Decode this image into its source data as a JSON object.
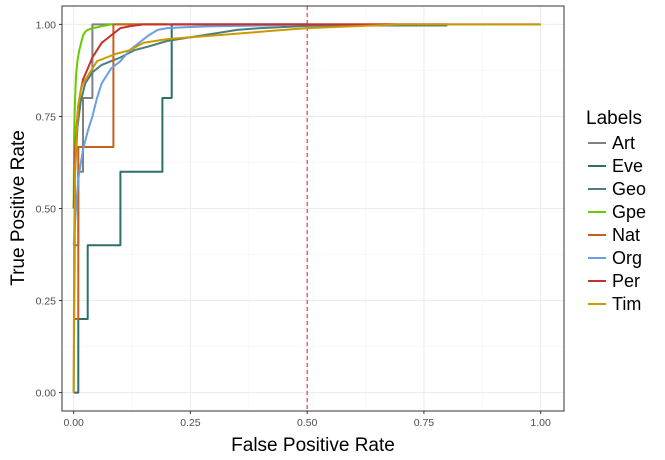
{
  "chart_data": {
    "type": "line",
    "title": "",
    "xlabel": "False Positive Rate",
    "ylabel": "True Positive Rate",
    "xlim": [
      -0.025,
      1.05
    ],
    "ylim": [
      -0.05,
      1.05
    ],
    "x_ticks": [
      0.0,
      0.25,
      0.5,
      0.75,
      1.0
    ],
    "x_tick_labels": [
      "0.00",
      "0.25",
      "0.50",
      "0.75",
      "1.00"
    ],
    "y_ticks": [
      0.0,
      0.25,
      0.5,
      0.75,
      1.0
    ],
    "y_tick_labels": [
      "0.00",
      "0.25",
      "0.50",
      "0.75",
      "1.00"
    ],
    "grid": true,
    "legend_title": "Labels",
    "legend_position": "right",
    "reference_line": {
      "x": 0.5,
      "color": "#e41a1c",
      "style": "dashed"
    },
    "series": [
      {
        "name": "Art",
        "color": "#808080",
        "x": [
          0,
          0.01,
          0.01,
          0.02,
          0.02,
          0.04,
          0.04,
          1.0
        ],
        "y": [
          0.4,
          0.4,
          0.6,
          0.6,
          0.8,
          0.8,
          1.0,
          1.0
        ]
      },
      {
        "name": "Eve",
        "color": "#2f6f6a",
        "x": [
          0,
          0.01,
          0.01,
          0.03,
          0.03,
          0.1,
          0.1,
          0.19,
          0.19,
          0.21,
          0.21,
          0.5
        ],
        "y": [
          0,
          0,
          0.2,
          0.2,
          0.4,
          0.4,
          0.6,
          0.6,
          0.8,
          0.8,
          1.0,
          1.0
        ]
      },
      {
        "name": "Geo",
        "color": "#4a7f7d",
        "x": [
          0,
          0.003,
          0.008,
          0.015,
          0.025,
          0.04,
          0.06,
          0.08,
          0.1,
          0.13,
          0.16,
          0.2,
          0.25,
          0.3,
          0.35,
          0.4,
          0.45,
          0.5,
          0.55,
          0.6,
          0.8
        ],
        "y": [
          0,
          0.6,
          0.72,
          0.79,
          0.84,
          0.87,
          0.89,
          0.9,
          0.91,
          0.93,
          0.94,
          0.955,
          0.965,
          0.975,
          0.985,
          0.99,
          0.993,
          0.996,
          0.997,
          0.997,
          0.997
        ]
      },
      {
        "name": "Gpe",
        "color": "#66cc00",
        "x": [
          0,
          0.001,
          0.003,
          0.005,
          0.008,
          0.012,
          0.016,
          0.02,
          0.025,
          0.03,
          0.04,
          0.05,
          0.06,
          0.08,
          0.1,
          0.15,
          0.2
        ],
        "y": [
          0.5,
          0.7,
          0.8,
          0.86,
          0.9,
          0.93,
          0.95,
          0.97,
          0.98,
          0.985,
          0.99,
          0.992,
          0.995,
          1.0,
          1.0,
          1.0,
          1.0
        ]
      },
      {
        "name": "Nat",
        "color": "#c65f1f",
        "x": [
          0,
          0.01,
          0.01,
          0.085,
          0.085,
          0.2
        ],
        "y": [
          0.2,
          0.2,
          0.667,
          0.667,
          1.0,
          1.0
        ]
      },
      {
        "name": "Org",
        "color": "#6a9fe0",
        "x": [
          0,
          0.005,
          0.01,
          0.02,
          0.03,
          0.04,
          0.05,
          0.06,
          0.08,
          0.1,
          0.12,
          0.14,
          0.16,
          0.18,
          0.2,
          0.25,
          0.3,
          0.4,
          0.5
        ],
        "y": [
          0.4,
          0.5,
          0.58,
          0.66,
          0.71,
          0.75,
          0.8,
          0.84,
          0.88,
          0.9,
          0.93,
          0.95,
          0.97,
          0.985,
          0.99,
          0.993,
          0.995,
          0.997,
          1.0
        ]
      },
      {
        "name": "Per",
        "color": "#c8302c",
        "x": [
          0,
          0.003,
          0.006,
          0.01,
          0.015,
          0.02,
          0.03,
          0.04,
          0.05,
          0.06,
          0.07,
          0.08,
          0.09,
          0.1,
          0.12,
          0.15,
          0.2,
          0.3,
          0.5,
          0.8
        ],
        "y": [
          0.5,
          0.65,
          0.72,
          0.78,
          0.82,
          0.85,
          0.88,
          0.91,
          0.93,
          0.95,
          0.96,
          0.97,
          0.98,
          0.99,
          0.995,
          1.0,
          1.0,
          1.0,
          1.0,
          1.0
        ]
      },
      {
        "name": "Tim",
        "color": "#cc9900",
        "x": [
          0,
          0.001,
          0.003,
          0.006,
          0.01,
          0.015,
          0.02,
          0.03,
          0.04,
          0.05,
          0.07,
          0.09,
          0.12,
          0.15,
          0.2,
          0.25,
          0.3,
          0.4,
          0.45,
          0.5,
          0.6,
          0.7,
          1.0
        ],
        "y": [
          0.0,
          0.4,
          0.6,
          0.7,
          0.78,
          0.82,
          0.84,
          0.86,
          0.88,
          0.9,
          0.91,
          0.92,
          0.93,
          0.95,
          0.96,
          0.965,
          0.97,
          0.98,
          0.985,
          0.99,
          0.995,
          1.0,
          1.0
        ]
      }
    ]
  }
}
